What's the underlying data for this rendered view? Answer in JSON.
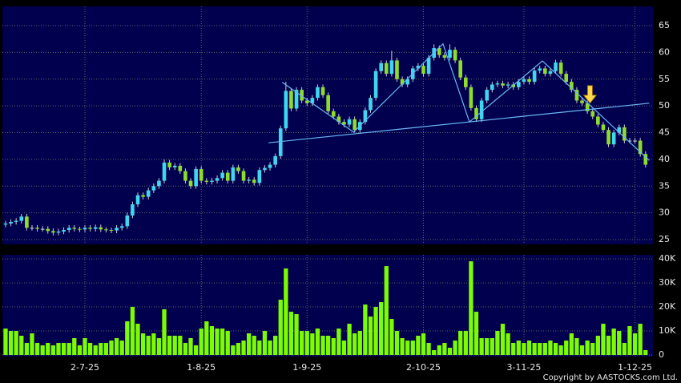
{
  "chart_data": [
    {
      "type": "candlestick",
      "up_color": "#3fd6f0",
      "down_color": "#8fdc2a",
      "line_color": "#6ab8f5",
      "arrow_color": "#ffd84a",
      "xlim": [
        -0.6,
        122.4
      ],
      "ylim": [
        24.1,
        68.6
      ],
      "yticks": [
        25,
        30,
        35,
        40,
        45,
        50,
        55,
        60,
        65
      ],
      "grid": true,
      "ohlc": [
        [
          27.8,
          28.5,
          27.3,
          28
        ],
        [
          28,
          28.8,
          27.5,
          28.3
        ],
        [
          28.3,
          29,
          27.8,
          28.5
        ],
        [
          28.5,
          29.8,
          28,
          29.3
        ],
        [
          29.3,
          29.8,
          26.7,
          27.2
        ],
        [
          27.2,
          27.7,
          26.7,
          27.2
        ],
        [
          27.2,
          27.7,
          26.5,
          27
        ],
        [
          27,
          27.5,
          26.5,
          27
        ],
        [
          27,
          27.5,
          26.1,
          26.6
        ],
        [
          26.6,
          27.1,
          25.8,
          26.3
        ],
        [
          26.3,
          27,
          25.8,
          26.5
        ],
        [
          26.5,
          27.3,
          26,
          26.8
        ],
        [
          26.8,
          27.7,
          26.3,
          27.2
        ],
        [
          27.2,
          27.7,
          26.5,
          27
        ],
        [
          27,
          27.4,
          26.4,
          26.9
        ],
        [
          26.9,
          27.7,
          26.4,
          27.2
        ],
        [
          27.2,
          27.7,
          26.5,
          27
        ],
        [
          27,
          27.8,
          26.5,
          27.3
        ],
        [
          27.3,
          27.8,
          26.4,
          26.9
        ],
        [
          26.9,
          27.3,
          26.3,
          26.8
        ],
        [
          26.8,
          27.2,
          26.2,
          26.7
        ],
        [
          26.7,
          27.7,
          26.2,
          27.2
        ],
        [
          27.2,
          28,
          26.7,
          27.5
        ],
        [
          27.5,
          30,
          27,
          29.5
        ],
        [
          29.5,
          32.1,
          29,
          31.6
        ],
        [
          31.6,
          33.8,
          31.1,
          33.3
        ],
        [
          33.3,
          33.8,
          32.5,
          33
        ],
        [
          33,
          34.7,
          32.5,
          34.2
        ],
        [
          34.2,
          35.5,
          33.7,
          35
        ],
        [
          35,
          36.5,
          34.5,
          36
        ],
        [
          36,
          40,
          35.5,
          39.4
        ],
        [
          39.4,
          39.9,
          38,
          38.5
        ],
        [
          38.5,
          39.3,
          38,
          38.8
        ],
        [
          38.8,
          39.3,
          37.3,
          37.8
        ],
        [
          37.8,
          38.3,
          35.5,
          36
        ],
        [
          36,
          36.5,
          34.5,
          35
        ],
        [
          35,
          38.7,
          34.5,
          38.2
        ],
        [
          38.2,
          38.7,
          35.5,
          36
        ],
        [
          36,
          36.5,
          35.3,
          35.8
        ],
        [
          35.8,
          36.5,
          35.3,
          36
        ],
        [
          36,
          37,
          35.5,
          36.5
        ],
        [
          36.5,
          38,
          36,
          37.5
        ],
        [
          37.5,
          38,
          35.5,
          36
        ],
        [
          36,
          39,
          35.5,
          38.5
        ],
        [
          38.5,
          39,
          37.3,
          37.8
        ],
        [
          37.8,
          38.3,
          35.5,
          36
        ],
        [
          36,
          36.7,
          35.5,
          36.2
        ],
        [
          36.2,
          36.7,
          35.1,
          35.6
        ],
        [
          35.6,
          38.5,
          35.1,
          38
        ],
        [
          38,
          38.9,
          37.5,
          38.4
        ],
        [
          38.4,
          39.5,
          37.9,
          39
        ],
        [
          39,
          41.1,
          38.5,
          40.6
        ],
        [
          40.6,
          46.3,
          40.1,
          45.8
        ],
        [
          45.8,
          54.5,
          45.3,
          52.8
        ],
        [
          52.8,
          53.3,
          49,
          49.5
        ],
        [
          49.5,
          53.5,
          49,
          53
        ],
        [
          53,
          53.5,
          50.5,
          51
        ],
        [
          51,
          51.5,
          50,
          50.5
        ],
        [
          50.5,
          52,
          50,
          51.5
        ],
        [
          51.5,
          54,
          51,
          53.5
        ],
        [
          53.5,
          54,
          51.5,
          52
        ],
        [
          52,
          52.5,
          48.5,
          49
        ],
        [
          49,
          49.5,
          47.5,
          48
        ],
        [
          48,
          48.5,
          46.5,
          47
        ],
        [
          47,
          47.5,
          46,
          46.5
        ],
        [
          46.5,
          48,
          46,
          47.5
        ],
        [
          47.5,
          48,
          45,
          45.5
        ],
        [
          45.5,
          47.5,
          45,
          47
        ],
        [
          47,
          49.7,
          46.5,
          49.2
        ],
        [
          49.2,
          52,
          48.7,
          51.5
        ],
        [
          51.5,
          57,
          51,
          56.5
        ],
        [
          56.5,
          58.5,
          56,
          58
        ],
        [
          58,
          58.5,
          55.5,
          56
        ],
        [
          56,
          60.3,
          55.5,
          58.5
        ],
        [
          58.5,
          59,
          54.5,
          55
        ],
        [
          55,
          55.5,
          53.5,
          54
        ],
        [
          54,
          55.5,
          53.5,
          55
        ],
        [
          55,
          57.5,
          54.5,
          57
        ],
        [
          57,
          58,
          56.5,
          57.5
        ],
        [
          57.5,
          58,
          55.5,
          56
        ],
        [
          56,
          59.5,
          55.5,
          59
        ],
        [
          59,
          61.5,
          58.5,
          60.8
        ],
        [
          60.8,
          61.3,
          59,
          59.5
        ],
        [
          59.5,
          60,
          58.5,
          59
        ],
        [
          59,
          61.5,
          58.5,
          60.5
        ],
        [
          60.5,
          61,
          58,
          58.5
        ],
        [
          58.5,
          59,
          54.8,
          55.3
        ],
        [
          55.3,
          55.8,
          53,
          53.5
        ],
        [
          53.5,
          54,
          49.1,
          49.6
        ],
        [
          49.6,
          50.1,
          47,
          47.5
        ],
        [
          47.5,
          51.5,
          47,
          51
        ],
        [
          51,
          53.5,
          50.5,
          53
        ],
        [
          53,
          54.5,
          52.5,
          54
        ],
        [
          54,
          54.7,
          53.5,
          54.2
        ],
        [
          54.2,
          54.7,
          53.3,
          53.8
        ],
        [
          53.8,
          54.5,
          53.3,
          54
        ],
        [
          54,
          54.5,
          53,
          53.5
        ],
        [
          53.5,
          55,
          53,
          54.5
        ],
        [
          54.5,
          55.5,
          54,
          55
        ],
        [
          55,
          55.5,
          54,
          54.5
        ],
        [
          54.5,
          57.1,
          54,
          56.6
        ],
        [
          56.6,
          57.5,
          56.1,
          57
        ],
        [
          57,
          57.5,
          55.5,
          56
        ],
        [
          56,
          57,
          55.5,
          56.5
        ],
        [
          56.5,
          58.6,
          56,
          58.1
        ],
        [
          58.1,
          58.6,
          55.5,
          56
        ],
        [
          56,
          56.5,
          54,
          54.5
        ],
        [
          54.5,
          55,
          52.5,
          53
        ],
        [
          53,
          53.5,
          50.5,
          51
        ],
        [
          51,
          51.5,
          50,
          50.5
        ],
        [
          50.5,
          51,
          48.5,
          49
        ],
        [
          49,
          49.5,
          47.5,
          48
        ],
        [
          48,
          48.5,
          46,
          46.5
        ],
        [
          46.5,
          47,
          45,
          45.5
        ],
        [
          45.5,
          46,
          42.3,
          42.8
        ],
        [
          42.8,
          45.5,
          42.3,
          45
        ],
        [
          45,
          46.5,
          44.5,
          46
        ],
        [
          46,
          46.5,
          43,
          43.5
        ],
        [
          43.5,
          44,
          43,
          43.5
        ],
        [
          43.5,
          44,
          43,
          43.5
        ],
        [
          43.5,
          44,
          40.5,
          41
        ],
        [
          41,
          41.5,
          38.5,
          39
        ]
      ],
      "trend_lines": [
        {
          "x": [
            49.7,
            121.7
          ],
          "y": [
            43.1,
            50.5
          ]
        },
        {
          "x": [
            52.3,
            65.8,
            82.7,
            87.7,
            101.5,
            121.7
          ],
          "y": [
            54.4,
            45.1,
            61.6,
            47,
            58.4,
            39.8
          ]
        }
      ],
      "arrow": {
        "x": 110.5,
        "y": 50.5
      }
    },
    {
      "type": "bar",
      "color": "#7cfc00",
      "xlim": [
        -0.6,
        122.4
      ],
      "ylim": [
        0,
        41700
      ],
      "yticks": [
        0,
        {
          "value": 10000,
          "label": "10K"
        },
        {
          "value": 20000,
          "label": "20K"
        },
        {
          "value": 30000,
          "label": "30K"
        },
        {
          "value": 40000,
          "label": "40K"
        }
      ],
      "xticks": [
        {
          "value": 15,
          "label": "2-7-25"
        },
        {
          "value": 37,
          "label": "1-8-25"
        },
        {
          "value": 57,
          "label": "1-9-25"
        },
        {
          "value": 79,
          "label": "2-10-25"
        },
        {
          "value": 98,
          "label": "3-11-25"
        },
        {
          "value": 119,
          "label": "1-12-25"
        }
      ],
      "values": [
        11000,
        10000,
        10000,
        8000,
        5000,
        9000,
        5000,
        4000,
        5000,
        4000,
        5000,
        5000,
        5000,
        7000,
        4000,
        7000,
        5000,
        4000,
        5000,
        5000,
        6000,
        7000,
        6000,
        14000,
        20000,
        13000,
        9000,
        8000,
        9000,
        7000,
        19000,
        8000,
        8000,
        8000,
        5000,
        7000,
        4000,
        11000,
        14000,
        12000,
        11000,
        11000,
        10000,
        4000,
        5000,
        6000,
        9000,
        8000,
        6000,
        10000,
        6000,
        8000,
        23000,
        36000,
        18000,
        17000,
        10000,
        10000,
        9000,
        11000,
        8000,
        8000,
        7000,
        11000,
        6000,
        13000,
        9000,
        10000,
        21000,
        16000,
        20000,
        22000,
        37000,
        15000,
        10000,
        7000,
        6000,
        6000,
        8000,
        9000,
        5000,
        2000,
        4000,
        5000,
        3000,
        6000,
        10000,
        10000,
        39000,
        18000,
        7000,
        7000,
        7000,
        10000,
        13000,
        9000,
        5000,
        6000,
        5000,
        6000,
        5000,
        5000,
        5000,
        6000,
        5000,
        4000,
        6000,
        9000,
        7000,
        4000,
        6000,
        5000,
        8000,
        13000,
        8000,
        11000,
        10000,
        5000,
        12000,
        9000,
        13000,
        2000
      ]
    }
  ],
  "footer": "Copyright by AASTOCKS.com Ltd."
}
